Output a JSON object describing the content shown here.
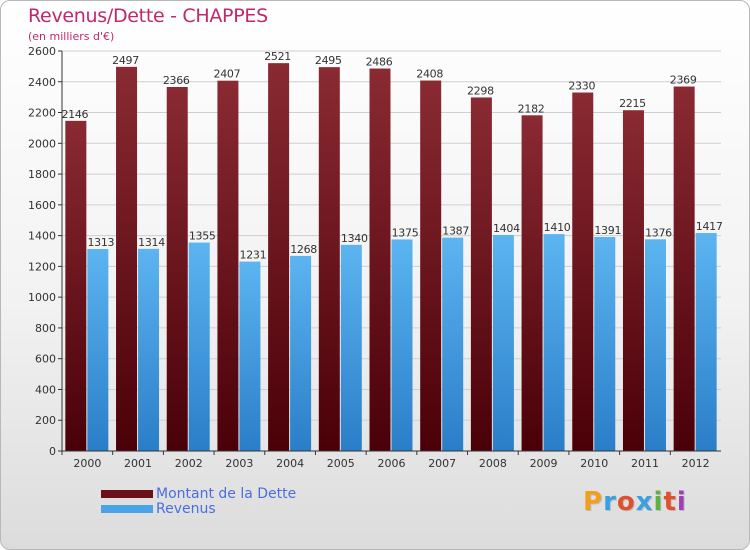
{
  "title": "Revenus/Dette - CHAPPES",
  "subtitle": "(en milliers d'€)",
  "colors": {
    "title": "#c0286e",
    "legend_text": "#4a6ee0",
    "axis": "#333333"
  },
  "legend": [
    {
      "label": "Montant de la Dette",
      "color": "#6b0f18"
    },
    {
      "label": "Revenus",
      "color": "#4aa3e6"
    }
  ],
  "brand": {
    "letters": [
      "P",
      "r",
      "o",
      "x",
      "i",
      "t",
      "i"
    ],
    "colors": [
      "#f0a020",
      "#3aa0e0",
      "#e05030",
      "#3aa0e0",
      "#60b040",
      "#e05030",
      "#a040b0"
    ]
  },
  "chart_data": {
    "type": "bar",
    "categories": [
      "2000",
      "2001",
      "2002",
      "2003",
      "2004",
      "2005",
      "2006",
      "2007",
      "2008",
      "2009",
      "2010",
      "2011",
      "2012"
    ],
    "series": [
      {
        "name": "Montant de la Dette",
        "color": "#7a1a22",
        "values": [
          2146,
          2497,
          2366,
          2407,
          2521,
          2495,
          2486,
          2408,
          2298,
          2182,
          2330,
          2215,
          2369
        ]
      },
      {
        "name": "Revenus",
        "color": "#4aa3e6",
        "values": [
          1313,
          1314,
          1355,
          1231,
          1268,
          1340,
          1375,
          1387,
          1404,
          1410,
          1391,
          1376,
          1417
        ]
      }
    ],
    "ylim": [
      0,
      2600
    ],
    "yticks": [
      "0",
      "200",
      "400",
      "600",
      "800",
      "1000",
      "1200",
      "1400",
      "1600",
      "1800",
      "2000",
      "2200",
      "2400",
      "2600"
    ],
    "grid": true,
    "xlabel": "",
    "ylabel": ""
  }
}
